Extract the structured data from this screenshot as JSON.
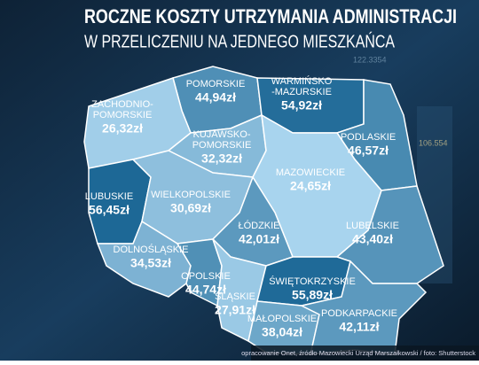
{
  "header": {
    "title": "ROCZNE KOSZTY UTRZYMANIA ADMINISTRACJI",
    "subtitle": "W PRZELICZENIU NA JEDNEGO MIESZKAŃCA"
  },
  "background": {
    "tickers": [
      "122.3354",
      "106.554"
    ]
  },
  "regions": [
    {
      "name": [
        "POMORSKIE"
      ],
      "value": 44.94,
      "label": "44,94zł"
    },
    {
      "name": [
        "WARMIŃSKO",
        "-MAZURSKIE"
      ],
      "value": 54.92,
      "label": "54,92zł"
    },
    {
      "name": [
        "ZACHODNIO-",
        "POMORSKIE"
      ],
      "value": 26.32,
      "label": "26,32zł"
    },
    {
      "name": [
        "PODLASKIE"
      ],
      "value": 46.57,
      "label": "46,57zł"
    },
    {
      "name": [
        "KUJAWSKO-",
        "POMORSKIE"
      ],
      "value": 32.32,
      "label": "32,32zł"
    },
    {
      "name": [
        "MAZOWIECKIE"
      ],
      "value": 24.65,
      "label": "24,65zł"
    },
    {
      "name": [
        "LUBUSKIE"
      ],
      "value": 56.45,
      "label": "56,45zł"
    },
    {
      "name": [
        "WIELKOPOLSKIE"
      ],
      "value": 30.69,
      "label": "30,69zł"
    },
    {
      "name": [
        "ŁÓDZKIE"
      ],
      "value": 42.01,
      "label": "42,01zł"
    },
    {
      "name": [
        "LUBELSKIE"
      ],
      "value": 43.4,
      "label": "43,40zł"
    },
    {
      "name": [
        "DOLNOŚLĄSKIE"
      ],
      "value": 34.53,
      "label": "34,53zł"
    },
    {
      "name": [
        "OPOLSKIE"
      ],
      "value": 44.74,
      "label": "44,74zł"
    },
    {
      "name": [
        "ŚLĄSKIE"
      ],
      "value": 27.91,
      "label": "27,91zł"
    },
    {
      "name": [
        "ŚWIĘTOKRZYSKIE"
      ],
      "value": 55.89,
      "label": "55,89zł"
    },
    {
      "name": [
        "MAŁOPOLSKIE"
      ],
      "value": 38.04,
      "label": "38,04zł"
    },
    {
      "name": [
        "PODKARPACKIE"
      ],
      "value": 42.11,
      "label": "42,11zł"
    }
  ],
  "footer": {
    "credit": "opracowanie Onet, źródło Mazowiecki Urząd Marszałkowski / foto: Shutterstock"
  }
}
